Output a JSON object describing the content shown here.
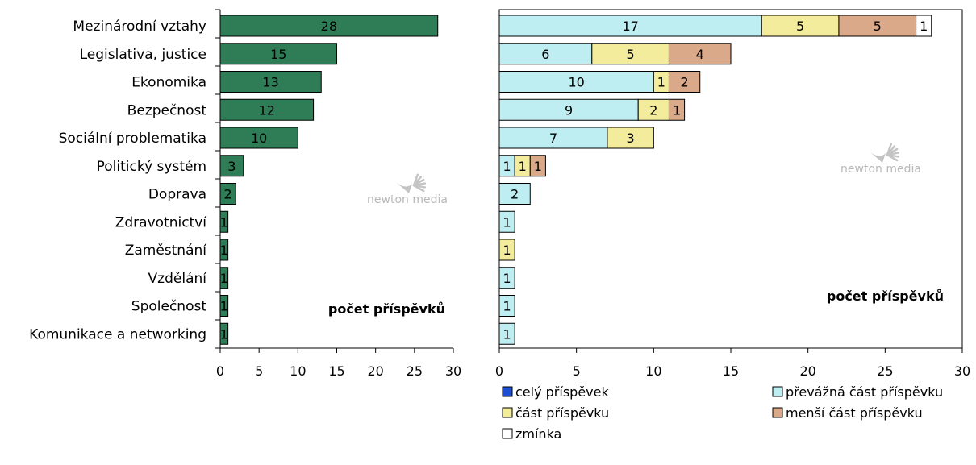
{
  "chart_data": [
    {
      "type": "bar",
      "orientation": "horizontal",
      "categories": [
        "Mezinárodní vztahy",
        "Legislativa, justice",
        "Ekonomika",
        "Bezpečnost",
        "Sociální problematika",
        "Politický systém",
        "Doprava",
        "Zdravotnictví",
        "Zaměstnání",
        "Vzdělání",
        "Společnost",
        "Komunikace a networking"
      ],
      "values": [
        28,
        15,
        13,
        12,
        10,
        3,
        2,
        1,
        1,
        1,
        1,
        1
      ],
      "xlim": [
        0,
        30
      ],
      "x_ticks": [
        0,
        5,
        10,
        15,
        20,
        25,
        30
      ],
      "unit_label": "počet příspěvků",
      "bar_color": "#2e7d56",
      "watermark": "newton media"
    },
    {
      "type": "bar",
      "orientation": "horizontal",
      "stacked": true,
      "categories": [
        "Mezinárodní vztahy",
        "Legislativa, justice",
        "Ekonomika",
        "Bezpečnost",
        "Sociální problematika",
        "Politický systém",
        "Doprava",
        "Zdravotnictví",
        "Zaměstnání",
        "Vzdělání",
        "Společnost",
        "Komunikace a networking"
      ],
      "series": [
        {
          "name": "celý příspěvek",
          "color": "#1f4fd0",
          "values": [
            0,
            0,
            0,
            0,
            0,
            0,
            0,
            0,
            0,
            0,
            0,
            0
          ]
        },
        {
          "name": "převážná část příspěvku",
          "color": "#bfeef2",
          "values": [
            17,
            6,
            10,
            9,
            7,
            1,
            2,
            1,
            0,
            1,
            1,
            1
          ]
        },
        {
          "name": "část příspěvku",
          "color": "#f2ec9c",
          "values": [
            5,
            5,
            1,
            2,
            3,
            1,
            0,
            0,
            1,
            0,
            0,
            0
          ]
        },
        {
          "name": "menší část příspěvku",
          "color": "#d9a98a",
          "values": [
            5,
            4,
            2,
            1,
            0,
            1,
            0,
            0,
            0,
            0,
            0,
            0
          ]
        },
        {
          "name": "zmínka",
          "color": "#ffffff",
          "values": [
            1,
            0,
            0,
            0,
            0,
            0,
            0,
            0,
            0,
            0,
            0,
            0
          ]
        }
      ],
      "xlim": [
        0,
        30
      ],
      "x_ticks": [
        0,
        5,
        10,
        15,
        20,
        25,
        30
      ],
      "unit_label": "počet příspěvků",
      "watermark": "newton media",
      "legend_position": "bottom"
    }
  ]
}
